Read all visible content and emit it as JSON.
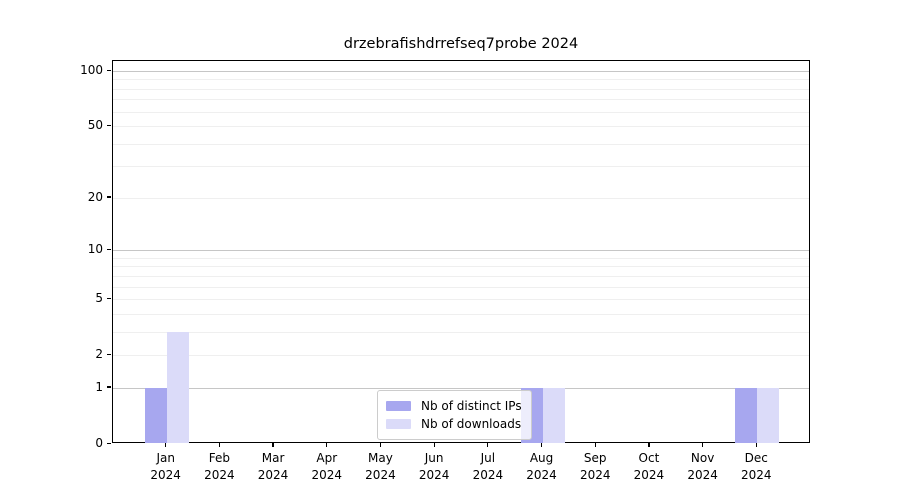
{
  "chart_data": {
    "type": "bar",
    "title": "drzebrafishdrrefseq7probe 2024",
    "categories": [
      "Jan 2024",
      "Feb 2024",
      "Mar 2024",
      "Apr 2024",
      "May 2024",
      "Jun 2024",
      "Jul 2024",
      "Aug 2024",
      "Sep 2024",
      "Oct 2024",
      "Nov 2024",
      "Dec 2024"
    ],
    "x_months": [
      "Jan",
      "Feb",
      "Mar",
      "Apr",
      "May",
      "Jun",
      "Jul",
      "Aug",
      "Sep",
      "Oct",
      "Nov",
      "Dec"
    ],
    "x_year": "2024",
    "series": [
      {
        "name": "Nb of distinct IPs",
        "color": "#a7a7ef",
        "values": [
          1,
          0,
          0,
          0,
          0,
          0,
          0,
          1,
          0,
          0,
          0,
          1
        ]
      },
      {
        "name": "Nb of downloads",
        "color": "#dbdbf9",
        "values": [
          3,
          0,
          0,
          0,
          0,
          0,
          0,
          1,
          0,
          0,
          0,
          1
        ]
      }
    ],
    "yscale": "log1p",
    "ylim": [
      0,
      114
    ],
    "yticks": [
      0,
      1,
      2,
      5,
      10,
      20,
      50,
      100
    ],
    "minor_yticks": [
      3,
      4,
      6,
      7,
      8,
      9,
      30,
      40,
      60,
      70,
      80,
      90
    ],
    "major_gridlines": [
      1,
      10,
      100
    ],
    "grid": true,
    "legend_location": "lower center",
    "colors": {
      "major_grid": "#c6c6c6",
      "minor_grid": "#efefef",
      "axis": "#000000",
      "text": "#000000"
    }
  }
}
